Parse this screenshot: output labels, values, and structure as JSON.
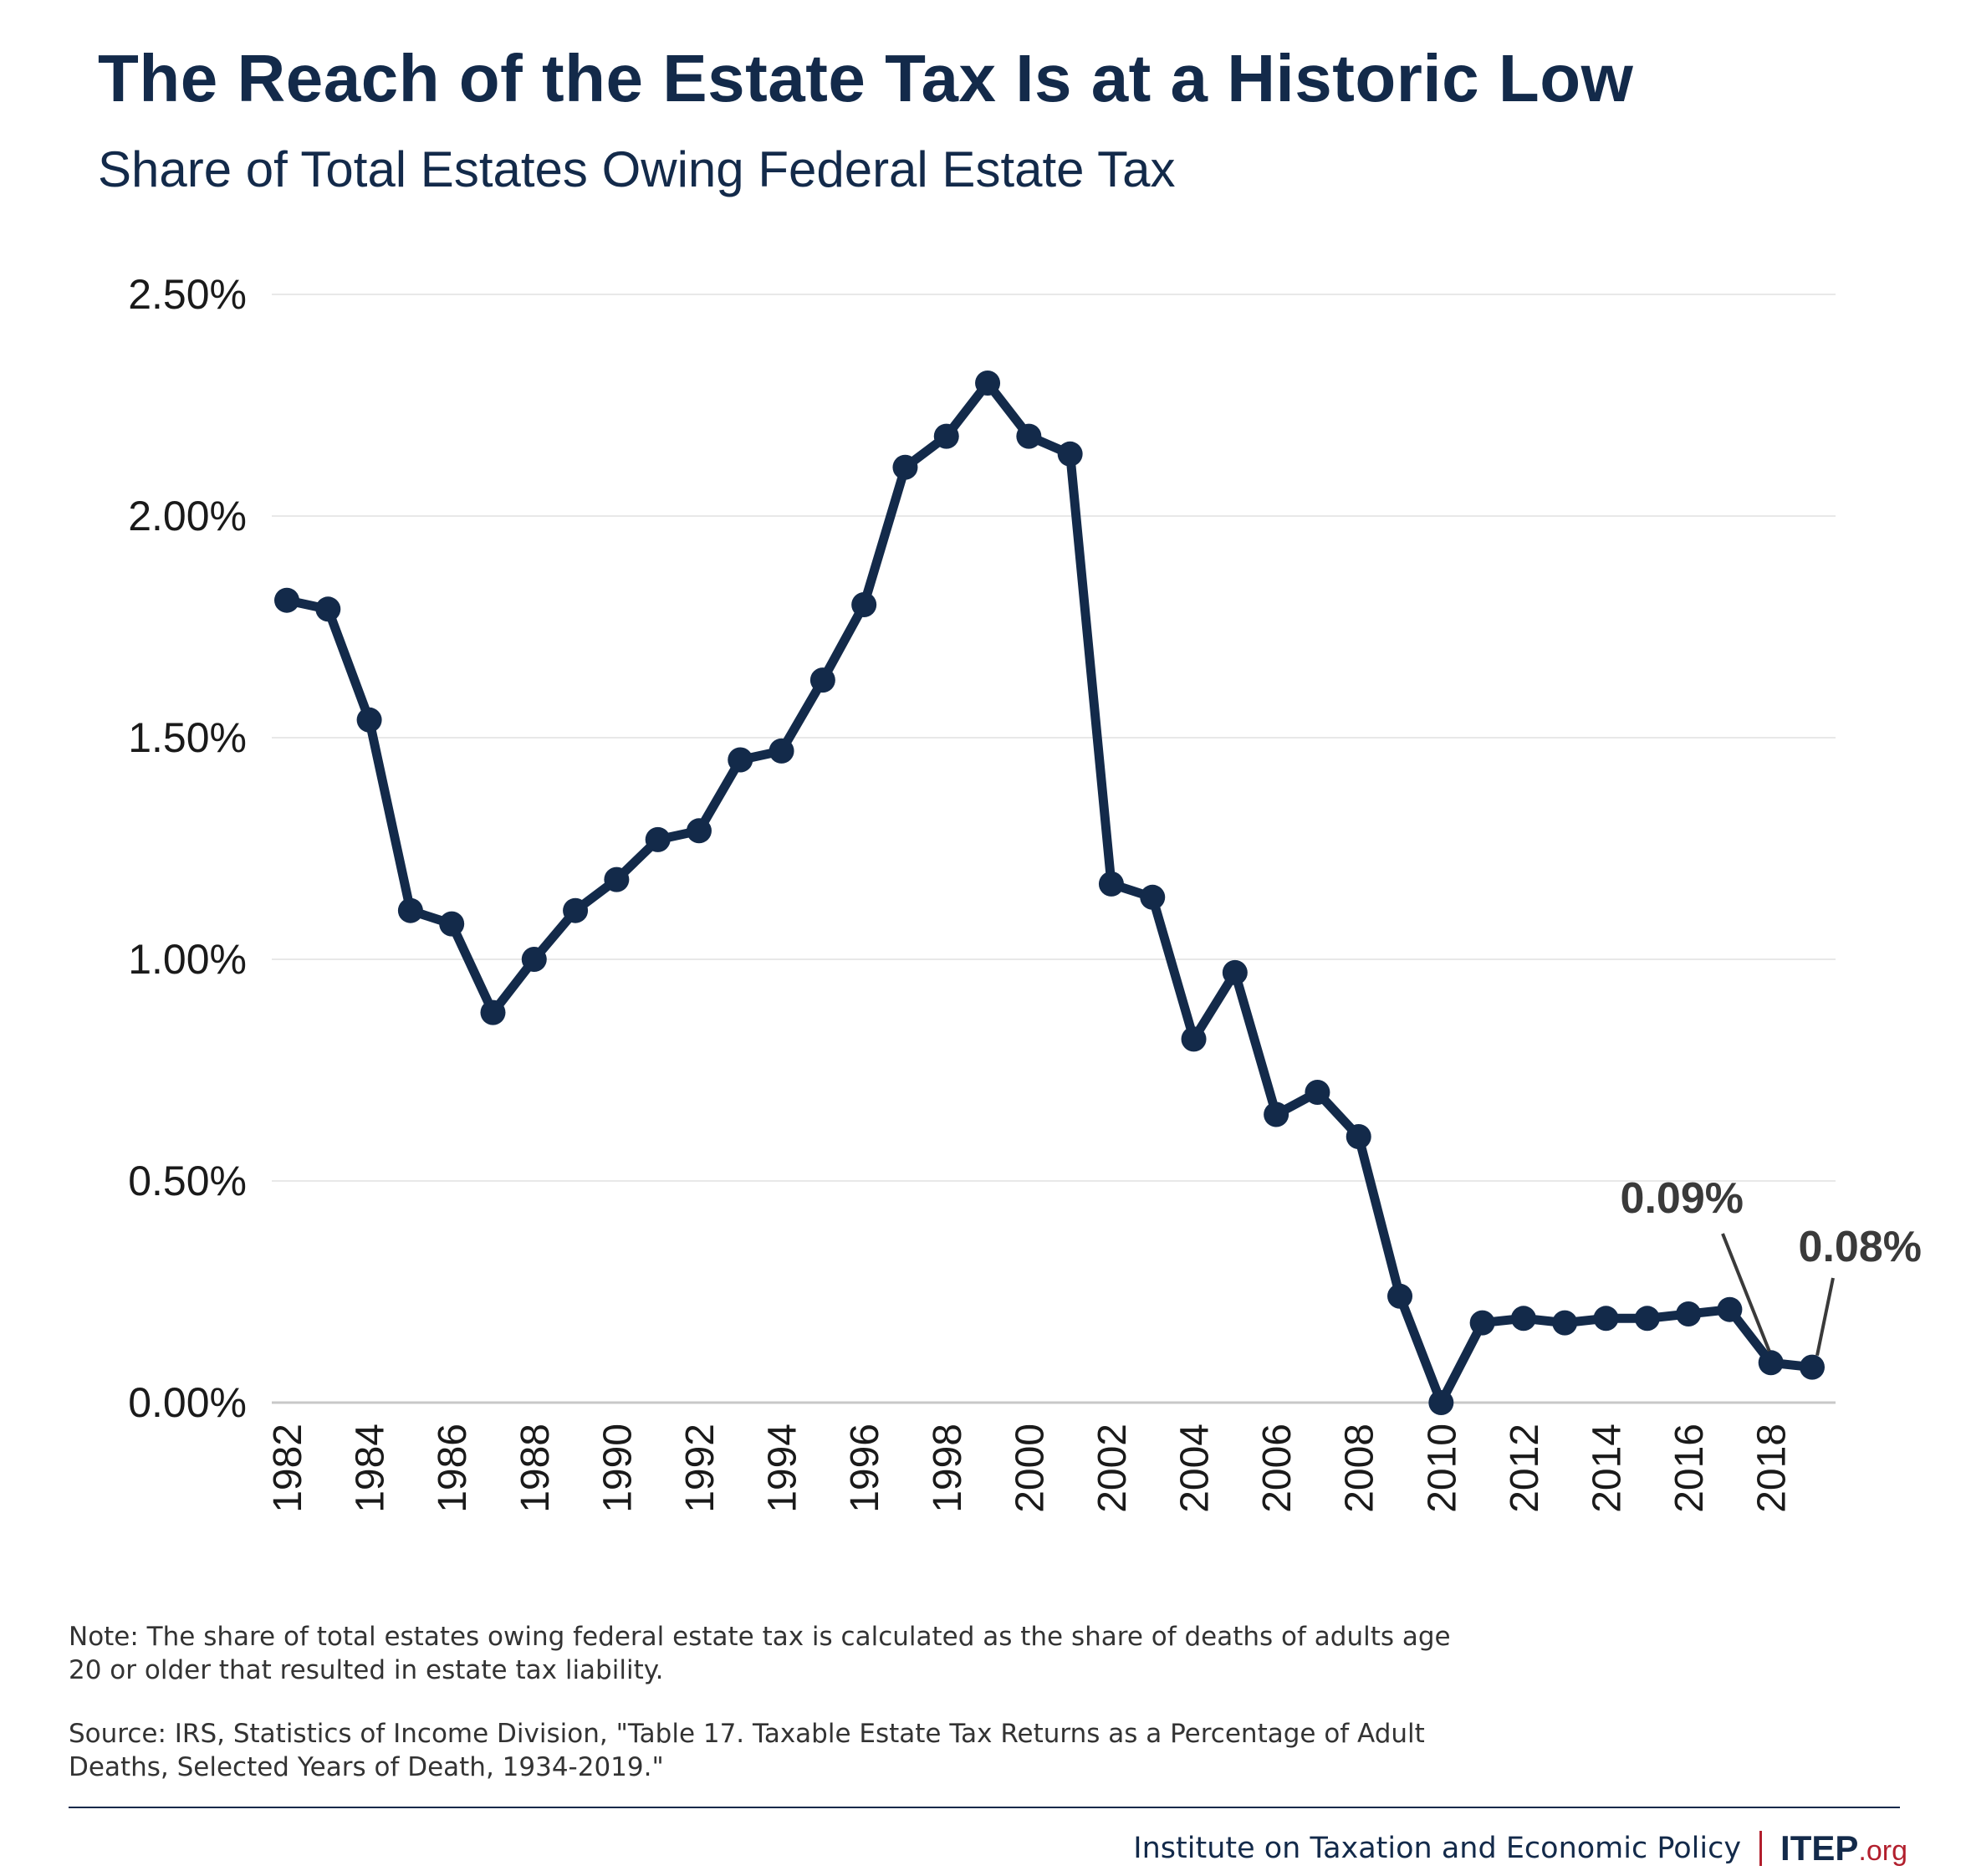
{
  "title": "The Reach of the Estate Tax Is at a Historic Low",
  "subtitle": "Share of Total Estates Owing Federal Estate Tax",
  "colors": {
    "line": "#132a4a",
    "grid": "#e8e8e8",
    "axis": "#c8c8c8",
    "text": "#1a1a1a",
    "annotation": "#3a3a3a",
    "accent": "#b21f2d"
  },
  "chart_data": {
    "type": "line",
    "title": "The Reach of the Estate Tax Is at a Historic Low",
    "subtitle": "Share of Total Estates Owing Federal Estate Tax",
    "xlabel": "",
    "ylabel": "",
    "ylim": [
      0,
      2.5
    ],
    "yticks": [
      "0.00%",
      "0.50%",
      "1.00%",
      "1.50%",
      "2.00%",
      "2.50%"
    ],
    "ytick_values": [
      0,
      0.5,
      1.0,
      1.5,
      2.0,
      2.5
    ],
    "xticks": [
      "1982",
      "1984",
      "1986",
      "1988",
      "1990",
      "1992",
      "1994",
      "1996",
      "1998",
      "2000",
      "2002",
      "2004",
      "2006",
      "2008",
      "2010",
      "2012",
      "2014",
      "2016",
      "2018"
    ],
    "grid": true,
    "series": [
      {
        "x": [
          1982,
          1983,
          1984,
          1985,
          1986,
          1987,
          1988,
          1989,
          1990,
          1991,
          1992,
          1993,
          1994,
          1995,
          1996,
          1997,
          1998,
          1999,
          2000,
          2001,
          2002,
          2003,
          2004,
          2005,
          2006,
          2007,
          2008,
          2009,
          2010,
          2011,
          2012,
          2013,
          2014,
          2015,
          2016,
          2017,
          2018,
          2019
        ],
        "values": [
          1.81,
          1.79,
          1.54,
          1.11,
          1.08,
          0.88,
          1.0,
          1.11,
          1.18,
          1.27,
          1.29,
          1.45,
          1.47,
          1.63,
          1.8,
          2.11,
          2.18,
          2.3,
          2.18,
          2.14,
          1.17,
          1.14,
          0.82,
          0.97,
          0.65,
          0.7,
          0.6,
          0.24,
          0.0,
          0.18,
          0.19,
          0.18,
          0.19,
          0.19,
          0.2,
          0.21,
          0.09,
          0.08
        ]
      }
    ],
    "annotations": [
      {
        "x": 2018,
        "value": 0.09,
        "text": "0.09%"
      },
      {
        "x": 2019,
        "value": 0.08,
        "text": "0.08%"
      }
    ]
  },
  "note": "Note: The share of total estates owing federal estate tax is calculated as the share of deaths of adults age 20 or older that resulted in estate tax liability.",
  "source": "Source: IRS, Statistics of Income Division, \"Table 17.  Taxable Estate Tax Returns as a Percentage of Adult Deaths, Selected Years of Death, 1934-2019.\"",
  "footer": {
    "org_name": "Institute on Taxation and Economic Policy",
    "logo_main": "ITEP",
    "logo_suffix": ".org"
  }
}
